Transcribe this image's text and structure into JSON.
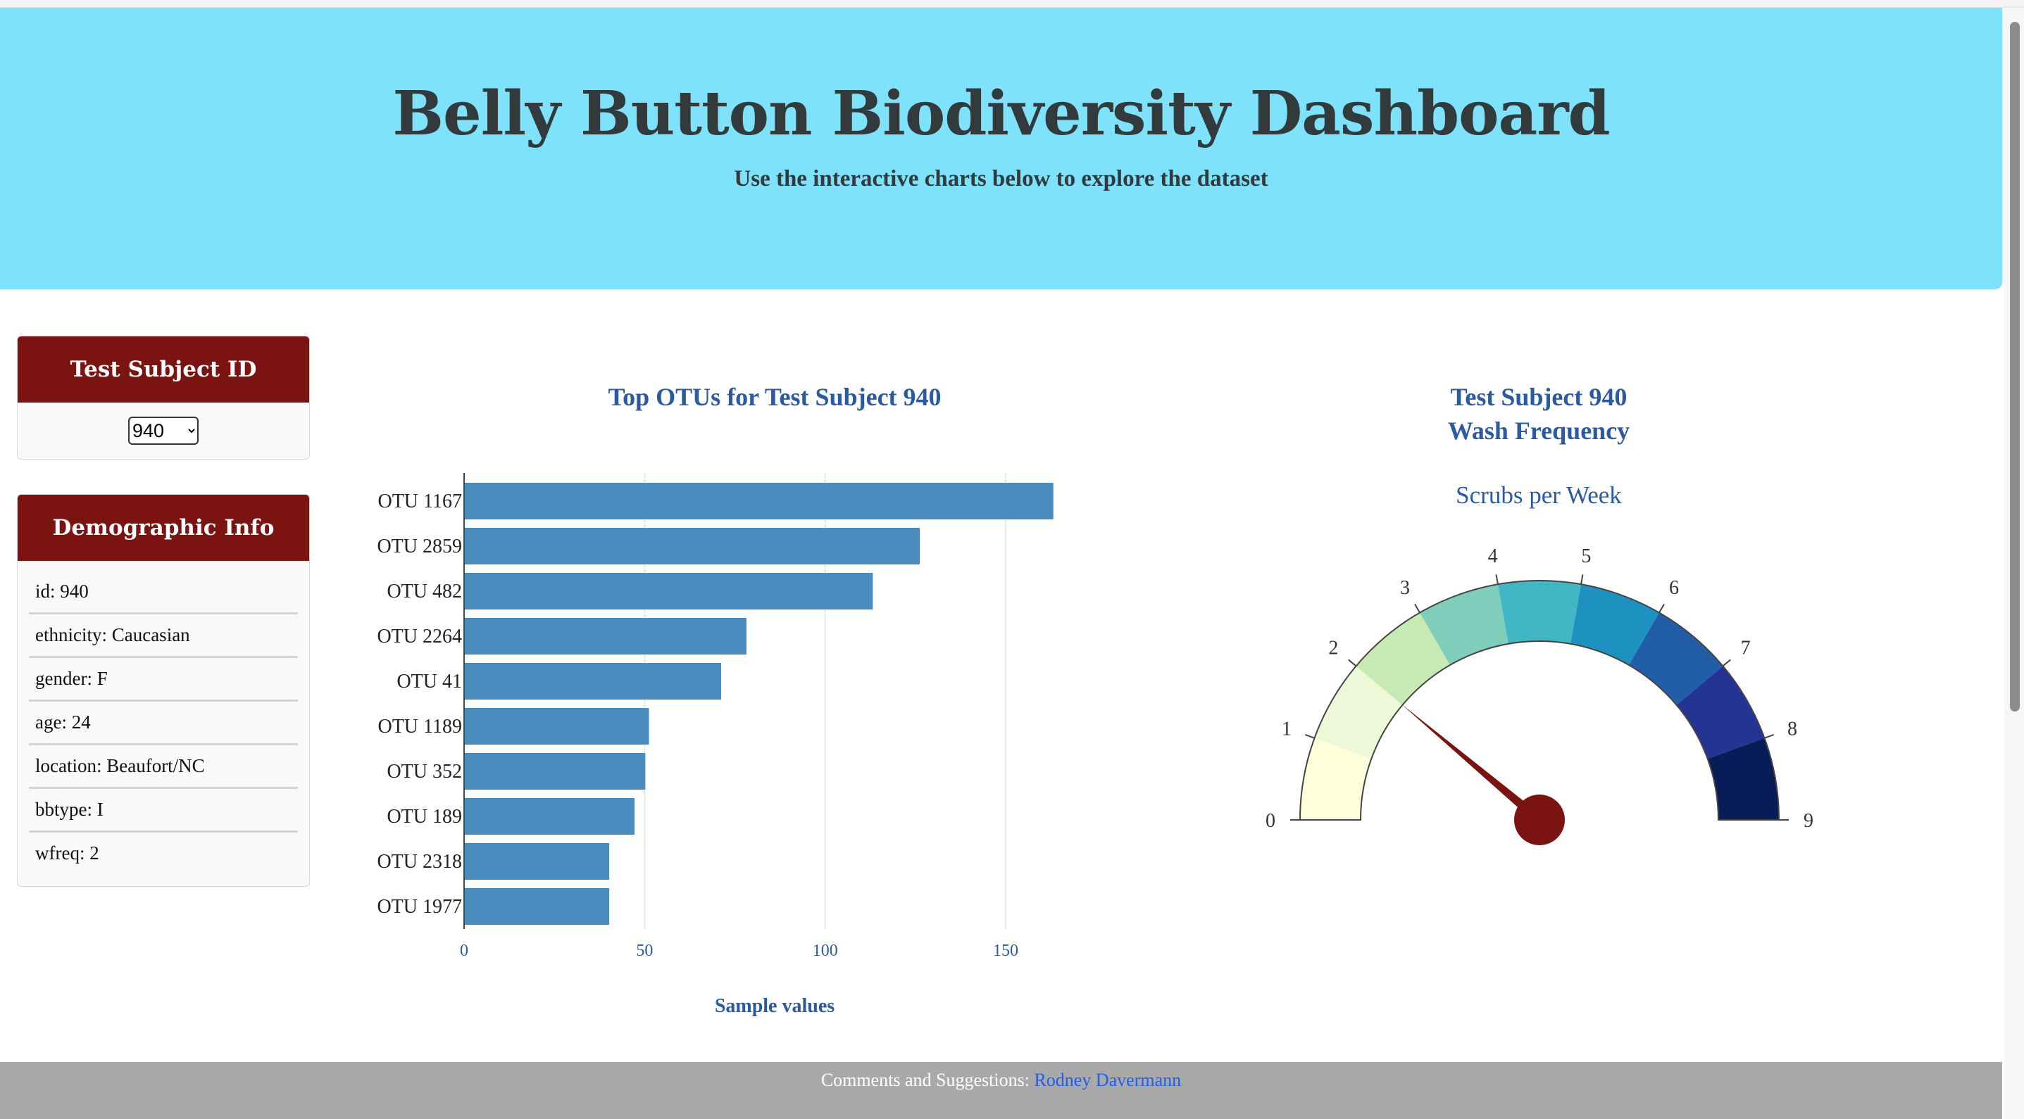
{
  "header": {
    "title": "Belly Button Biodiversity Dashboard",
    "subtitle": "Use the interactive charts below to explore the dataset"
  },
  "subject_panel": {
    "title": "Test Subject ID",
    "selected": "940"
  },
  "demographic_panel": {
    "title": "Demographic Info",
    "items": [
      "id: 940",
      "ethnicity: Caucasian",
      "gender: F",
      "age: 24",
      "location: Beaufort/NC",
      "bbtype: I",
      "wfreq: 2"
    ]
  },
  "bar_chart": {
    "title": "Top OTUs for Test Subject 940"
  },
  "gauge_chart": {
    "title_line1": "Test Subject 940",
    "title_line2": "Wash Frequency",
    "subtitle": "Scrubs per Week"
  },
  "footer": {
    "text": "Comments and Suggestions: ",
    "link_text": "Rodney Davermann"
  },
  "colors": {
    "header_bg": "#7ee2fb",
    "panel_header_bg": "#7b1410",
    "bar_color": "#4a8cbe",
    "title_color": "#2c5aa0",
    "needle_color": "#7b1410",
    "footer_bg": "#a9a9a9",
    "gauge_steps": [
      "#ffffd9",
      "#edf8d9",
      "#c7e9b4",
      "#7fcdbb",
      "#41b6c4",
      "#1d91c0",
      "#225ea8",
      "#253494",
      "#081d58"
    ]
  },
  "chart_data": [
    {
      "type": "bar",
      "orientation": "horizontal",
      "title": "Top OTUs for Test Subject 940",
      "xlabel": "Sample values",
      "ylabel": "",
      "categories": [
        "OTU 1167",
        "OTU 2859",
        "OTU 482",
        "OTU 2264",
        "OTU 41",
        "OTU 1189",
        "OTU 352",
        "OTU 189",
        "OTU 2318",
        "OTU 1977"
      ],
      "values": [
        163,
        126,
        113,
        78,
        71,
        51,
        50,
        47,
        40,
        40
      ],
      "xticks": [
        0,
        50,
        100,
        150
      ],
      "xlim": [
        0,
        165
      ],
      "grid": "vertical"
    },
    {
      "type": "gauge",
      "title": "Test Subject 940 Wash Frequency",
      "subtitle": "Scrubs per Week",
      "range": [
        0,
        9
      ],
      "ticks": [
        0,
        1,
        2,
        3,
        4,
        5,
        6,
        7,
        8,
        9
      ],
      "value": 2
    }
  ]
}
